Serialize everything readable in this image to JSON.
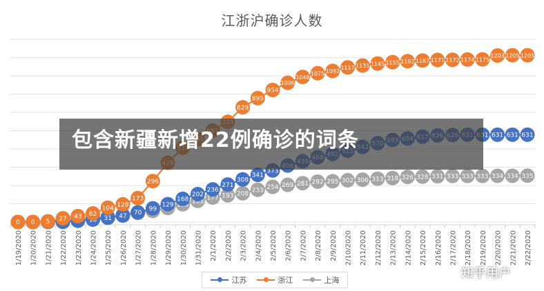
{
  "chart_data": {
    "type": "line",
    "title": "江浙沪确诊人数",
    "categories": [
      "1/19/2020",
      "1/20/2020",
      "1/21/2020",
      "1/22/2020",
      "1/23/2020",
      "1/24/2020",
      "1/25/2020",
      "1/26/2020",
      "1/27/2020",
      "1/28/2020",
      "1/29/2020",
      "1/30/2020",
      "1/31/2020",
      "2/1/2020",
      "2/2/2020",
      "2/3/2020",
      "2/4/2020",
      "2/5/2020",
      "2/6/2020",
      "2/7/2020",
      "2/8/2020",
      "2/9/2020",
      "2/10/2020",
      "2/11/2020",
      "2/12/2020",
      "2/13/2020",
      "2/14/2020",
      "2/15/2020",
      "2/16/2020",
      "2/17/2020",
      "2/18/2020",
      "2/19/2020",
      "2/20/2020",
      "2/21/2020",
      "2/22/2020"
    ],
    "series": [
      {
        "name": "江苏",
        "color": "#4472c4",
        "values": [
          0,
          0,
          1,
          1,
          9,
          18,
          31,
          47,
          70,
          99,
          129,
          168,
          202,
          236,
          271,
          308,
          341,
          373,
          408,
          439,
          468,
          492,
          515,
          543,
          570,
          593,
          604,
          617,
          626,
          629,
          631,
          631,
          631,
          631,
          631
        ]
      },
      {
        "name": "浙江",
        "color": "#ed7d31",
        "values": [
          0,
          0,
          5,
          27,
          43,
          62,
          104,
          128,
          173,
          296,
          428,
          537,
          599,
          661,
          724,
          829,
          895,
          954,
          1006,
          1048,
          1075,
          1092,
          1117,
          1131,
          1145,
          1155,
          1162,
          1167,
          1171,
          1172,
          1174,
          1175,
          1203,
          1205,
          1205
        ]
      },
      {
        "name": "上海",
        "color": "#a5a5a5",
        "values": [
          0,
          0,
          2,
          16,
          20,
          33,
          40,
          53,
          66,
          80,
          101,
          128,
          153,
          177,
          193,
          208,
          233,
          254,
          269,
          281,
          292,
          295,
          302,
          306,
          313,
          318,
          326,
          328,
          331,
          333,
          333,
          333,
          334,
          334,
          335
        ]
      }
    ],
    "ylim": [
      0,
      1320
    ],
    "grid": true,
    "legend_position": "bottom"
  },
  "overlay": {
    "text": "包含新疆新增22例确诊的词条"
  },
  "watermark": {
    "text": "知乎用户"
  }
}
